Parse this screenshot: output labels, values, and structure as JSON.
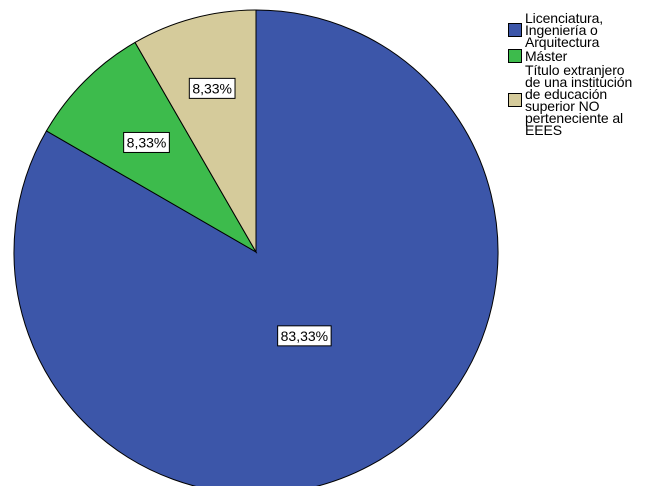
{
  "chart_data": {
    "type": "pie",
    "start_angle_deg": 0,
    "direction": "clockwise",
    "slices": [
      {
        "label": "Licenciatura,\nIngeniería o\nArquitectura",
        "value": 83.33,
        "data_label": "83,33%",
        "color": "#3c56a9"
      },
      {
        "label": "Máster",
        "value": 8.33,
        "data_label": "8,33%",
        "color": "#3dbb4c"
      },
      {
        "label": "Título extranjero\nde una institución\nde educación\nsuperior NO\nperteneciente al\nEEES",
        "value": 8.33,
        "data_label": "8,33%",
        "color": "#d5cb9b"
      }
    ],
    "legend_position": "top-right"
  }
}
